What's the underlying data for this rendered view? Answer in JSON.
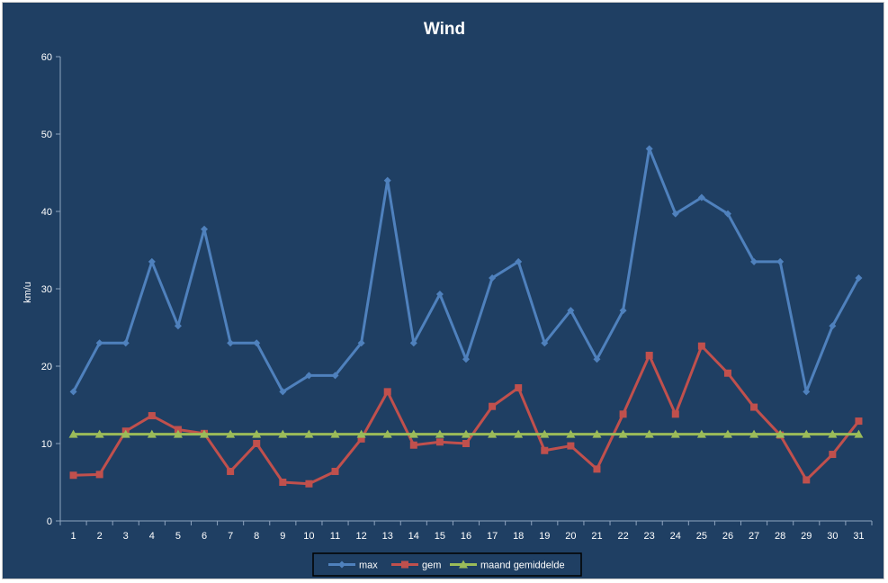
{
  "chart_data": {
    "type": "line",
    "title": "Wind",
    "xlabel": "",
    "ylabel": "km/u",
    "ylim": [
      0,
      60
    ],
    "yticks": [
      0,
      10,
      20,
      30,
      40,
      50,
      60
    ],
    "grid": false,
    "legend": "bottom",
    "categories": [
      "1",
      "2",
      "3",
      "4",
      "5",
      "6",
      "7",
      "8",
      "9",
      "10",
      "11",
      "12",
      "13",
      "14",
      "15",
      "16",
      "17",
      "18",
      "19",
      "20",
      "21",
      "22",
      "23",
      "24",
      "25",
      "26",
      "27",
      "28",
      "29",
      "30",
      "31"
    ],
    "series": [
      {
        "name": "max",
        "color": "#4f81bd",
        "marker": "diamond",
        "values": [
          16.7,
          23.0,
          23.0,
          33.5,
          25.2,
          37.7,
          23.0,
          23.0,
          16.7,
          18.8,
          18.8,
          23.0,
          44.0,
          23.0,
          29.3,
          20.9,
          31.4,
          33.5,
          23.0,
          27.2,
          20.9,
          27.2,
          48.1,
          39.7,
          41.8,
          39.7,
          33.5,
          33.5,
          16.7,
          25.2,
          31.4
        ]
      },
      {
        "name": "gem",
        "color": "#c0504d",
        "marker": "square",
        "values": [
          5.9,
          6.0,
          11.6,
          13.6,
          11.8,
          11.3,
          6.4,
          10.0,
          5.0,
          4.8,
          6.4,
          10.6,
          16.7,
          9.8,
          10.2,
          10.0,
          14.8,
          17.2,
          9.1,
          9.7,
          6.7,
          13.8,
          21.4,
          13.8,
          22.6,
          19.1,
          14.7,
          11.1,
          5.3,
          8.6,
          12.9
        ]
      },
      {
        "name": "maand gemiddelde",
        "color": "#9bbb59",
        "marker": "triangle",
        "values": [
          11.2,
          11.2,
          11.2,
          11.2,
          11.2,
          11.2,
          11.2,
          11.2,
          11.2,
          11.2,
          11.2,
          11.2,
          11.2,
          11.2,
          11.2,
          11.2,
          11.2,
          11.2,
          11.2,
          11.2,
          11.2,
          11.2,
          11.2,
          11.2,
          11.2,
          11.2,
          11.2,
          11.2,
          11.2,
          11.2,
          11.2
        ]
      }
    ]
  }
}
